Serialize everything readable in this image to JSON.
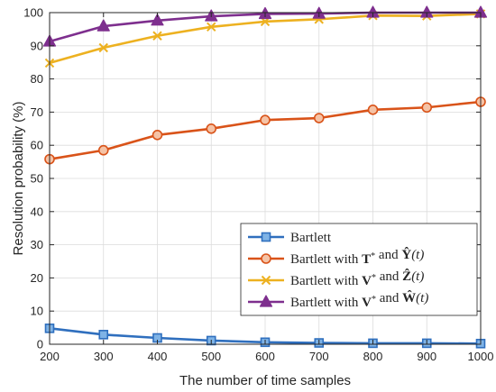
{
  "chart_data": {
    "type": "line",
    "title": "",
    "xlabel": "The number of time samples",
    "ylabel": "Resolution probability (%)",
    "xlim": [
      200,
      1000
    ],
    "ylim": [
      0,
      100
    ],
    "xticks": [
      200,
      300,
      400,
      500,
      600,
      700,
      800,
      900,
      1000
    ],
    "yticks": [
      0,
      10,
      20,
      30,
      40,
      50,
      60,
      70,
      80,
      90,
      100
    ],
    "grid": true,
    "legend_position": "bottom-right",
    "x": [
      200,
      300,
      400,
      500,
      600,
      700,
      800,
      900,
      1000
    ],
    "series": [
      {
        "name": "Bartlett",
        "values": [
          4.8,
          2.9,
          1.9,
          1.1,
          0.6,
          0.4,
          0.3,
          0.3,
          0.2
        ],
        "color": "#2f6fbe",
        "marker": "square"
      },
      {
        "name": "Bartlett with T* and Ŷ(t)",
        "values": [
          55.8,
          58.5,
          63.1,
          65.0,
          67.6,
          68.2,
          70.7,
          71.4,
          73.1
        ],
        "color": "#d95319",
        "marker": "circle"
      },
      {
        "name": "Bartlett with V* and Ẑ(t)",
        "values": [
          84.8,
          89.4,
          93.0,
          95.7,
          97.3,
          98.0,
          99.1,
          99.0,
          99.6
        ],
        "color": "#edb120",
        "marker": "x"
      },
      {
        "name": "Bartlett with V* and Ŵ(t)",
        "values": [
          91.3,
          95.9,
          97.6,
          98.9,
          99.6,
          99.7,
          100.0,
          100.0,
          100.0
        ],
        "color": "#7e2f8e",
        "marker": "triangle"
      }
    ]
  }
}
